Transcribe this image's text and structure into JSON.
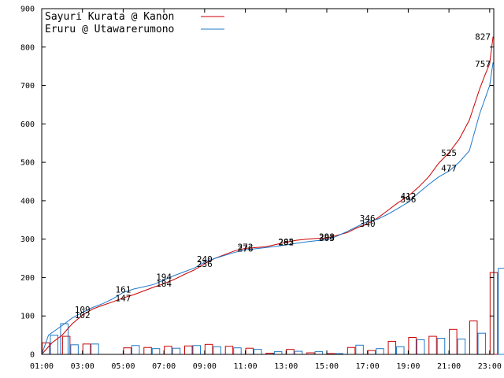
{
  "chart_data": {
    "type": "line",
    "title": "",
    "xlabel": "",
    "ylabel": "",
    "ylim": [
      0,
      900
    ],
    "xlim_hours": [
      1,
      23.2
    ],
    "y_ticks": [
      0,
      100,
      200,
      300,
      400,
      500,
      600,
      700,
      800,
      900
    ],
    "x_ticks": [
      "01:00",
      "03:00",
      "05:00",
      "07:00",
      "09:00",
      "11:00",
      "13:00",
      "15:00",
      "17:00",
      "19:00",
      "21:00",
      "23:00"
    ],
    "grid": false,
    "legend_position": "top-left",
    "series": [
      {
        "name": "Sayuri Kurata @ Kanon",
        "color": "#cc0000",
        "cumulative": [
          {
            "t": "01:00",
            "v": 0
          },
          {
            "t": "01:30",
            "v": 30
          },
          {
            "t": "02:00",
            "v": 50
          },
          {
            "t": "02:30",
            "v": 80
          },
          {
            "t": "03:00",
            "v": 102
          },
          {
            "t": "03:30",
            "v": 118
          },
          {
            "t": "04:00",
            "v": 128
          },
          {
            "t": "04:30",
            "v": 137
          },
          {
            "t": "05:00",
            "v": 147
          },
          {
            "t": "05:30",
            "v": 155
          },
          {
            "t": "06:00",
            "v": 165
          },
          {
            "t": "06:30",
            "v": 175
          },
          {
            "t": "07:00",
            "v": 184
          },
          {
            "t": "07:30",
            "v": 195
          },
          {
            "t": "08:00",
            "v": 208
          },
          {
            "t": "08:30",
            "v": 220
          },
          {
            "t": "09:00",
            "v": 236
          },
          {
            "t": "09:30",
            "v": 250
          },
          {
            "t": "10:00",
            "v": 260
          },
          {
            "t": "10:30",
            "v": 270
          },
          {
            "t": "11:00",
            "v": 276
          },
          {
            "t": "11:30",
            "v": 278
          },
          {
            "t": "12:00",
            "v": 280
          },
          {
            "t": "12:30",
            "v": 286
          },
          {
            "t": "13:00",
            "v": 292
          },
          {
            "t": "13:30",
            "v": 297
          },
          {
            "t": "14:00",
            "v": 300
          },
          {
            "t": "14:30",
            "v": 302
          },
          {
            "t": "15:00",
            "v": 303
          },
          {
            "t": "15:30",
            "v": 310
          },
          {
            "t": "16:00",
            "v": 317
          },
          {
            "t": "16:30",
            "v": 330
          },
          {
            "t": "17:00",
            "v": 340
          },
          {
            "t": "17:30",
            "v": 355
          },
          {
            "t": "18:00",
            "v": 375
          },
          {
            "t": "18:30",
            "v": 395
          },
          {
            "t": "19:00",
            "v": 412
          },
          {
            "t": "19:30",
            "v": 435
          },
          {
            "t": "20:00",
            "v": 462
          },
          {
            "t": "20:30",
            "v": 498
          },
          {
            "t": "21:00",
            "v": 525
          },
          {
            "t": "21:30",
            "v": 560
          },
          {
            "t": "22:00",
            "v": 610
          },
          {
            "t": "22:30",
            "v": 690
          },
          {
            "t": "22:45",
            "v": 725
          },
          {
            "t": "23:00",
            "v": 757
          },
          {
            "t": "23:10",
            "v": 827
          }
        ],
        "point_labels": [
          {
            "t": "03:00",
            "v": 102
          },
          {
            "t": "05:00",
            "v": 147
          },
          {
            "t": "07:00",
            "v": 184
          },
          {
            "t": "09:00",
            "v": 236
          },
          {
            "t": "11:00",
            "v": 276
          },
          {
            "t": "13:00",
            "v": 292
          },
          {
            "t": "15:00",
            "v": 303
          },
          {
            "t": "17:00",
            "v": 340
          },
          {
            "t": "19:00",
            "v": 412
          },
          {
            "t": "21:00",
            "v": 525
          },
          {
            "t": "23:00",
            "v": 757
          },
          {
            "t": "23:10",
            "v": 827
          }
        ],
        "hourly_votes": [
          {
            "t": "01:00",
            "v": 30
          },
          {
            "t": "02:00",
            "v": 47
          },
          {
            "t": "03:00",
            "v": 27
          },
          {
            "t": "04:00",
            "v": 0
          },
          {
            "t": "05:00",
            "v": 17
          },
          {
            "t": "06:00",
            "v": 18
          },
          {
            "t": "07:00",
            "v": 21
          },
          {
            "t": "08:00",
            "v": 22
          },
          {
            "t": "09:00",
            "v": 26
          },
          {
            "t": "10:00",
            "v": 21
          },
          {
            "t": "11:00",
            "v": 16
          },
          {
            "t": "12:00",
            "v": 3
          },
          {
            "t": "13:00",
            "v": 13
          },
          {
            "t": "14:00",
            "v": 4
          },
          {
            "t": "15:00",
            "v": 2
          },
          {
            "t": "16:00",
            "v": 18
          },
          {
            "t": "17:00",
            "v": 10
          },
          {
            "t": "18:00",
            "v": 34
          },
          {
            "t": "19:00",
            "v": 44
          },
          {
            "t": "20:00",
            "v": 47
          },
          {
            "t": "21:00",
            "v": 65
          },
          {
            "t": "22:00",
            "v": 87
          },
          {
            "t": "23:00",
            "v": 213
          }
        ]
      },
      {
        "name": "Eruru @ Utawarerumono",
        "color": "#1f78c8",
        "cumulative": [
          {
            "t": "01:00",
            "v": 0
          },
          {
            "t": "01:20",
            "v": 50
          },
          {
            "t": "02:00",
            "v": 75
          },
          {
            "t": "02:30",
            "v": 95
          },
          {
            "t": "03:00",
            "v": 109
          },
          {
            "t": "03:30",
            "v": 122
          },
          {
            "t": "04:00",
            "v": 132
          },
          {
            "t": "04:30",
            "v": 145
          },
          {
            "t": "05:00",
            "v": 161
          },
          {
            "t": "05:30",
            "v": 170
          },
          {
            "t": "06:00",
            "v": 176
          },
          {
            "t": "06:30",
            "v": 182
          },
          {
            "t": "07:00",
            "v": 194
          },
          {
            "t": "07:30",
            "v": 205
          },
          {
            "t": "08:00",
            "v": 215
          },
          {
            "t": "08:30",
            "v": 225
          },
          {
            "t": "09:00",
            "v": 240
          },
          {
            "t": "09:30",
            "v": 250
          },
          {
            "t": "10:00",
            "v": 258
          },
          {
            "t": "10:30",
            "v": 266
          },
          {
            "t": "11:00",
            "v": 272
          },
          {
            "t": "11:30",
            "v": 275
          },
          {
            "t": "12:00",
            "v": 278
          },
          {
            "t": "12:30",
            "v": 281
          },
          {
            "t": "13:00",
            "v": 285
          },
          {
            "t": "13:30",
            "v": 289
          },
          {
            "t": "14:00",
            "v": 293
          },
          {
            "t": "14:30",
            "v": 296
          },
          {
            "t": "15:00",
            "v": 298
          },
          {
            "t": "15:30",
            "v": 308
          },
          {
            "t": "16:00",
            "v": 320
          },
          {
            "t": "16:30",
            "v": 333
          },
          {
            "t": "17:00",
            "v": 346
          },
          {
            "t": "17:30",
            "v": 352
          },
          {
            "t": "18:00",
            "v": 365
          },
          {
            "t": "18:30",
            "v": 380
          },
          {
            "t": "19:00",
            "v": 396
          },
          {
            "t": "19:30",
            "v": 420
          },
          {
            "t": "20:00",
            "v": 442
          },
          {
            "t": "20:30",
            "v": 462
          },
          {
            "t": "21:00",
            "v": 477
          },
          {
            "t": "21:30",
            "v": 500
          },
          {
            "t": "22:00",
            "v": 530
          },
          {
            "t": "22:30",
            "v": 625
          },
          {
            "t": "23:00",
            "v": 700
          },
          {
            "t": "23:10",
            "v": 760
          }
        ],
        "point_labels": [
          {
            "t": "03:00",
            "v": 109
          },
          {
            "t": "05:00",
            "v": 161
          },
          {
            "t": "07:00",
            "v": 194
          },
          {
            "t": "09:00",
            "v": 240
          },
          {
            "t": "11:00",
            "v": 272
          },
          {
            "t": "13:00",
            "v": 285
          },
          {
            "t": "15:00",
            "v": 298
          },
          {
            "t": "17:00",
            "v": 346
          },
          {
            "t": "19:00",
            "v": 396
          },
          {
            "t": "21:00",
            "v": 477
          }
        ],
        "hourly_votes": [
          {
            "t": "01:00",
            "v": 50
          },
          {
            "t": "01:30",
            "v": 80
          },
          {
            "t": "02:00",
            "v": 25
          },
          {
            "t": "03:00",
            "v": 27
          },
          {
            "t": "04:00",
            "v": 0
          },
          {
            "t": "05:00",
            "v": 23
          },
          {
            "t": "06:00",
            "v": 15
          },
          {
            "t": "07:00",
            "v": 16
          },
          {
            "t": "08:00",
            "v": 23
          },
          {
            "t": "09:00",
            "v": 20
          },
          {
            "t": "10:00",
            "v": 17
          },
          {
            "t": "11:00",
            "v": 13
          },
          {
            "t": "12:00",
            "v": 7
          },
          {
            "t": "13:00",
            "v": 8
          },
          {
            "t": "14:00",
            "v": 7
          },
          {
            "t": "15:00",
            "v": 2
          },
          {
            "t": "16:00",
            "v": 24
          },
          {
            "t": "17:00",
            "v": 15
          },
          {
            "t": "18:00",
            "v": 20
          },
          {
            "t": "19:00",
            "v": 38
          },
          {
            "t": "20:00",
            "v": 42
          },
          {
            "t": "21:00",
            "v": 40
          },
          {
            "t": "22:00",
            "v": 55
          },
          {
            "t": "23:00",
            "v": 224
          }
        ]
      }
    ]
  }
}
